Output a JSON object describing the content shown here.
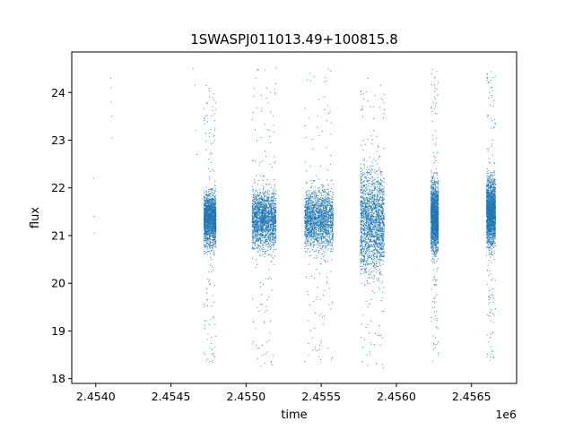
{
  "chart_data": {
    "type": "scatter",
    "title": "1SWASPJ011013.49+100815.8",
    "xlabel": "time",
    "ylabel": "flux",
    "x_offset_label": "1e6",
    "xlim": [
      2453840,
      2456800
    ],
    "ylim": [
      17.9,
      24.85
    ],
    "x_ticks": [
      2454000,
      2454500,
      2455000,
      2455500,
      2456000,
      2456500
    ],
    "x_tick_labels": [
      "2.4540",
      "2.4545",
      "2.4550",
      "2.4555",
      "2.4560",
      "2.4565"
    ],
    "y_ticks": [
      18,
      19,
      20,
      21,
      22,
      23,
      24
    ],
    "y_tick_labels": [
      "18",
      "19",
      "20",
      "21",
      "22",
      "23",
      "24"
    ],
    "grid": false,
    "legend": "none",
    "point_color": "#1f77b4",
    "sample_points": [
      [
        2453985,
        22.2
      ],
      [
        2453987,
        21.4
      ],
      [
        2453990,
        21.05
      ],
      [
        2454100,
        24.3
      ],
      [
        2454102,
        24.1
      ],
      [
        2454104,
        23.8
      ],
      [
        2454106,
        23.5
      ],
      [
        2454108,
        23.05
      ],
      [
        2454650,
        24.5
      ],
      [
        2454660,
        24.15
      ],
      [
        2454668,
        23.2
      ],
      [
        2454672,
        22.7
      ]
    ],
    "seasons": [
      {
        "x_start": 2454720,
        "x_end": 2454800,
        "core_center": 21.35,
        "core_half_width": 0.75,
        "y_min": 18.3,
        "y_max": 24.3
      },
      {
        "x_start": 2455040,
        "x_end": 2455200,
        "core_center": 21.35,
        "core_half_width": 0.8,
        "y_min": 18.25,
        "y_max": 24.55
      },
      {
        "x_start": 2455390,
        "x_end": 2455580,
        "core_center": 21.35,
        "core_half_width": 0.85,
        "y_min": 18.25,
        "y_max": 24.55
      },
      {
        "x_start": 2455760,
        "x_end": 2455920,
        "core_center": 21.3,
        "core_half_width": 1.5,
        "y_min": 18.2,
        "y_max": 24.55
      },
      {
        "x_start": 2456230,
        "x_end": 2456280,
        "core_center": 21.4,
        "core_half_width": 0.95,
        "y_min": 18.35,
        "y_max": 24.5
      },
      {
        "x_start": 2456600,
        "x_end": 2456660,
        "core_center": 21.5,
        "core_half_width": 0.95,
        "y_min": 18.35,
        "y_max": 24.5
      }
    ]
  }
}
